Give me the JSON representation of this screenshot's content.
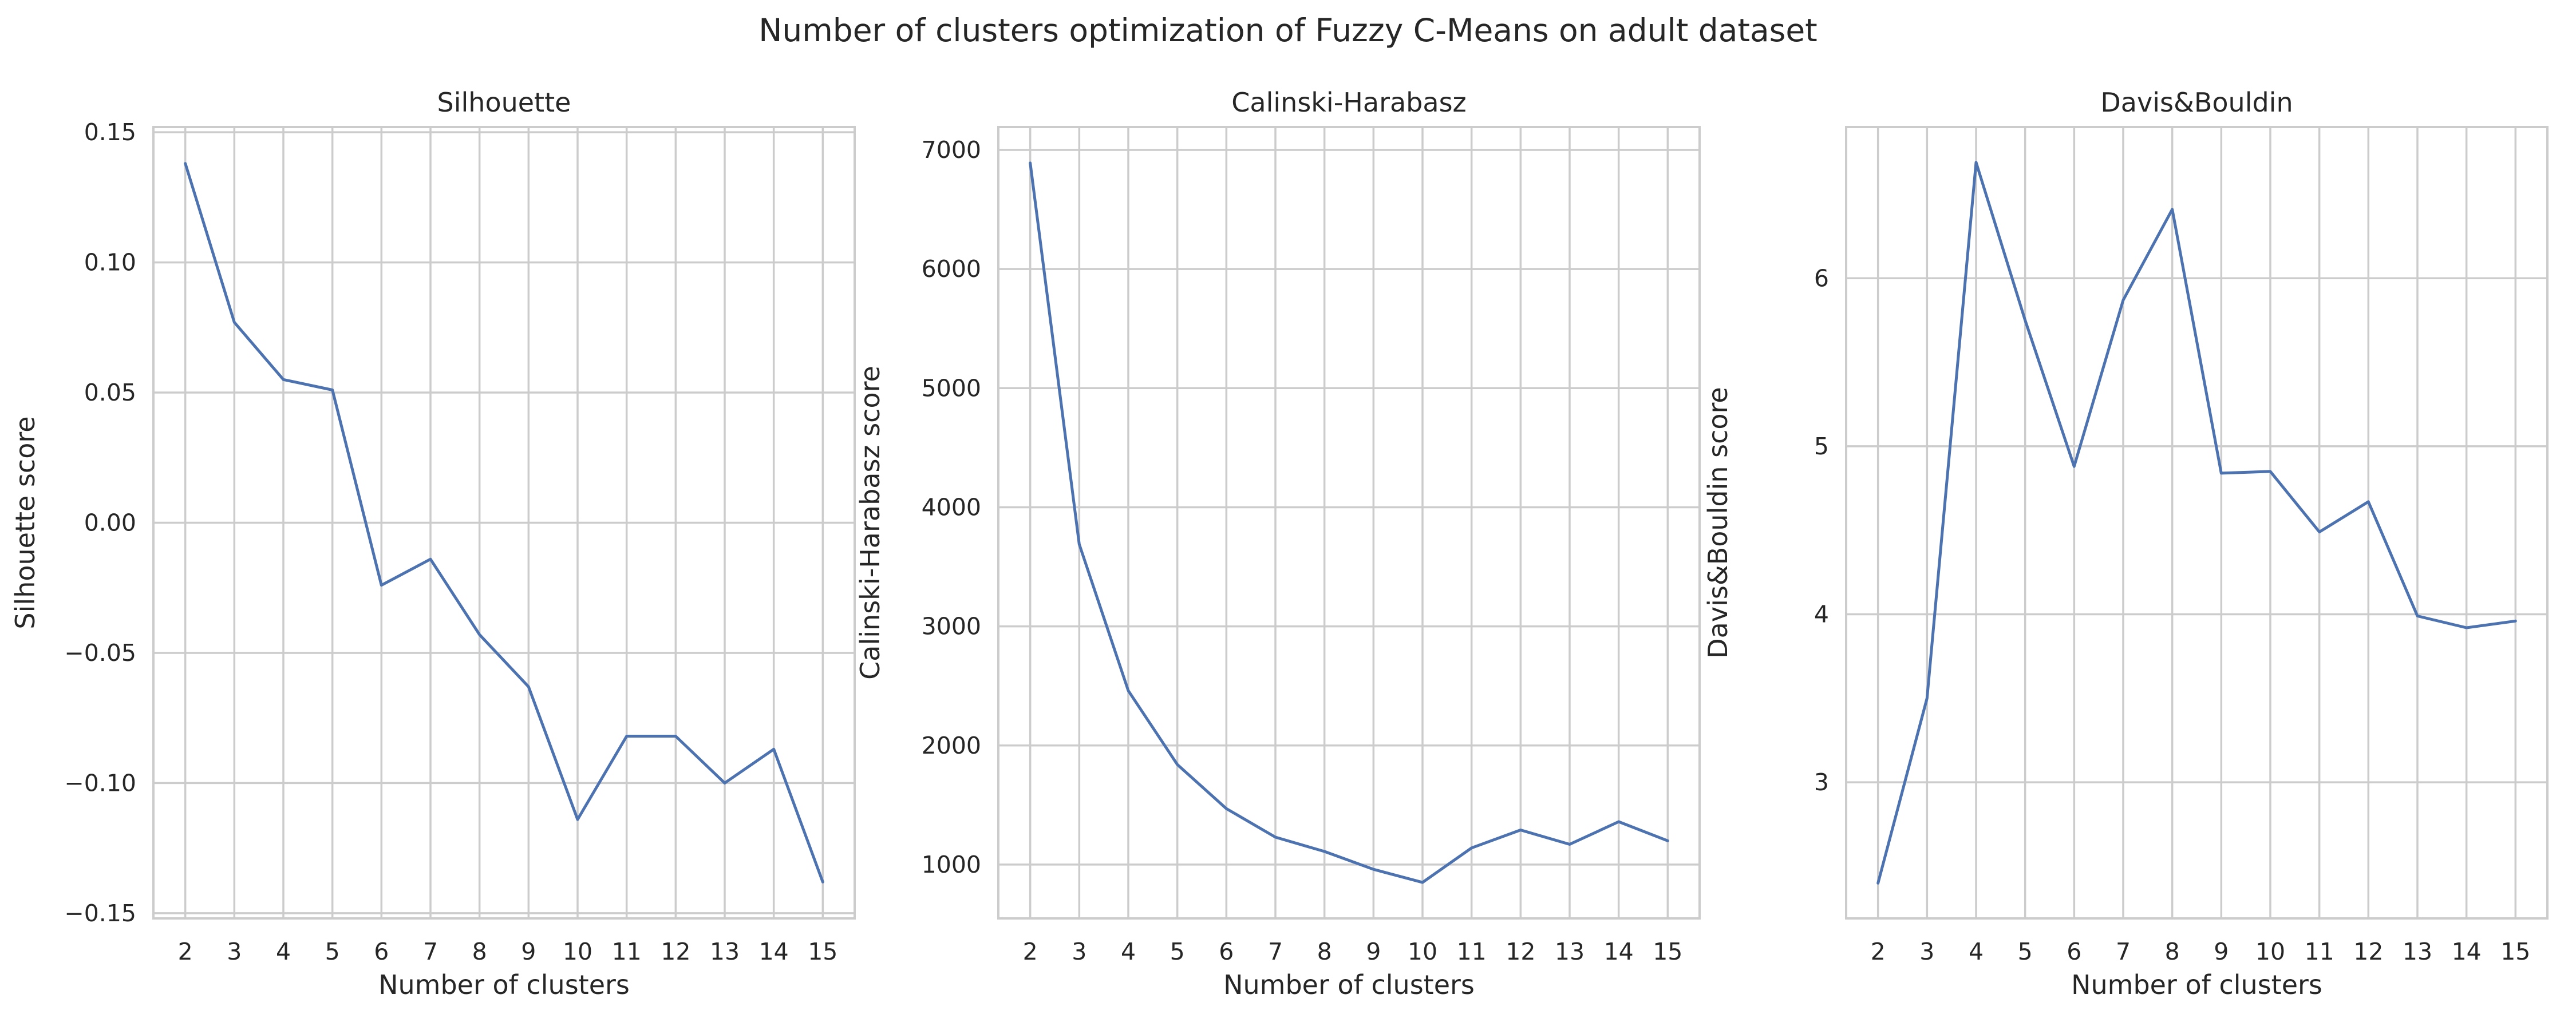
{
  "figure": {
    "title": "Number of clusters optimization of Fuzzy C-Means on adult dataset",
    "line_color": "#4c72b0"
  },
  "chart_data": [
    {
      "type": "line",
      "title": "Silhouette",
      "xlabel": "Number of clusters",
      "ylabel": "Silhouette score",
      "x": [
        2,
        3,
        4,
        5,
        6,
        7,
        8,
        9,
        10,
        11,
        12,
        13,
        14,
        15
      ],
      "y": [
        0.138,
        0.077,
        0.055,
        0.051,
        -0.024,
        -0.014,
        -0.043,
        -0.063,
        -0.114,
        -0.082,
        -0.082,
        -0.1,
        -0.087,
        -0.138
      ],
      "xticks": [
        2,
        3,
        4,
        5,
        6,
        7,
        8,
        9,
        10,
        11,
        12,
        13,
        14,
        15
      ],
      "xlim": [
        1.35,
        15.65
      ],
      "yticks": [
        0.15,
        0.1,
        0.05,
        0.0,
        -0.05,
        -0.1,
        -0.15
      ],
      "ytick_labels": [
        "0.15",
        "0.10",
        "0.05",
        "0.00",
        "−0.05",
        "−0.10",
        "−0.15"
      ],
      "ylim": [
        -0.152,
        0.152
      ],
      "grid": true
    },
    {
      "type": "line",
      "title": "Calinski-Harabasz",
      "xlabel": "Number of clusters",
      "ylabel": "Calinski-Harabasz score",
      "x": [
        2,
        3,
        4,
        5,
        6,
        7,
        8,
        9,
        10,
        11,
        12,
        13,
        14,
        15
      ],
      "y": [
        6890,
        3690,
        2460,
        1840,
        1470,
        1230,
        1110,
        960,
        850,
        1140,
        1290,
        1170,
        1360,
        1200
      ],
      "xticks": [
        2,
        3,
        4,
        5,
        6,
        7,
        8,
        9,
        10,
        11,
        12,
        13,
        14,
        15
      ],
      "xlim": [
        1.35,
        15.65
      ],
      "yticks": [
        1000,
        2000,
        3000,
        4000,
        5000,
        6000,
        7000
      ],
      "ytick_labels": [
        "1000",
        "2000",
        "3000",
        "4000",
        "5000",
        "6000",
        "7000"
      ],
      "ylim": [
        548,
        7192
      ],
      "grid": true
    },
    {
      "type": "line",
      "title": "Davis&Bouldin",
      "xlabel": "Number of clusters",
      "ylabel": "Davis&Bouldin score",
      "x": [
        2,
        3,
        4,
        5,
        6,
        7,
        8,
        9,
        10,
        11,
        12,
        13,
        14,
        15
      ],
      "y": [
        2.4,
        3.5,
        6.69,
        5.75,
        4.88,
        5.87,
        6.41,
        4.84,
        4.85,
        4.49,
        4.67,
        3.99,
        3.92,
        3.96
      ],
      "xticks": [
        2,
        3,
        4,
        5,
        6,
        7,
        8,
        9,
        10,
        11,
        12,
        13,
        14,
        15
      ],
      "xlim": [
        1.35,
        15.65
      ],
      "yticks": [
        3,
        4,
        5,
        6
      ],
      "ytick_labels": [
        "3",
        "4",
        "5",
        "6"
      ],
      "ylim": [
        2.19,
        6.9
      ],
      "grid": true
    }
  ]
}
